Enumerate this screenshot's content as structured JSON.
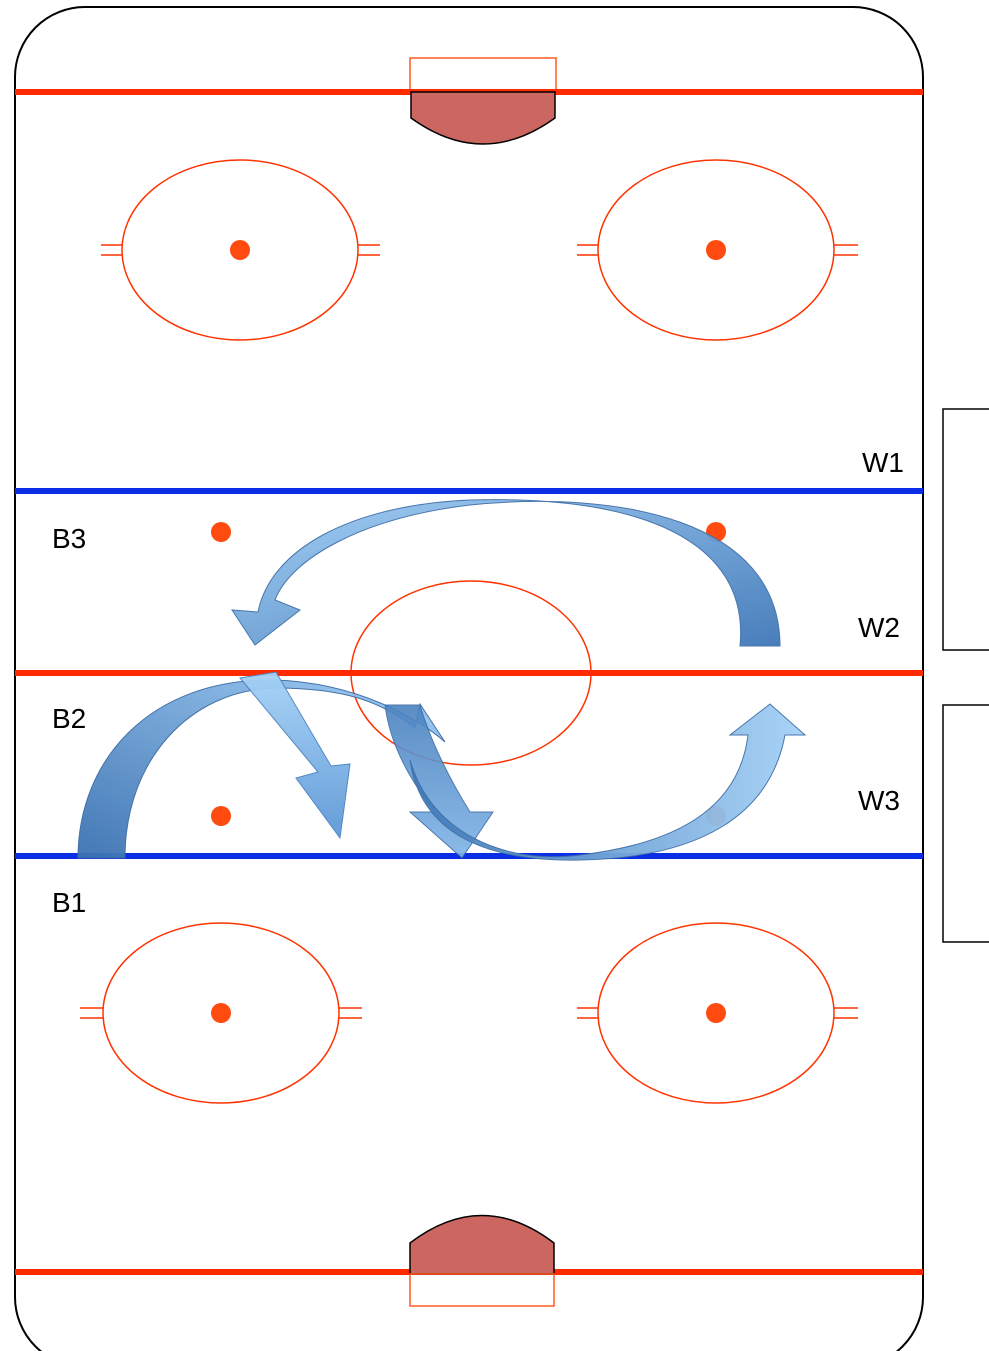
{
  "labels": {
    "W1": "W1",
    "W2": "W2",
    "W3": "W3",
    "B1": "B1",
    "B2": "B2",
    "B3": "B3"
  },
  "colors": {
    "red_line": "#ff2a00",
    "blue_line": "#0a2ee6",
    "circle": "#ff3300",
    "dot": "#ff4a10",
    "crease_fill": "#cc6660",
    "arrow_light": "#9ecbf3",
    "arrow_mid": "#6fa6dc",
    "arrow_dark": "#3f78b8"
  },
  "icons": [
    "curved-arrow-icon",
    "straight-arrow-icon"
  ]
}
